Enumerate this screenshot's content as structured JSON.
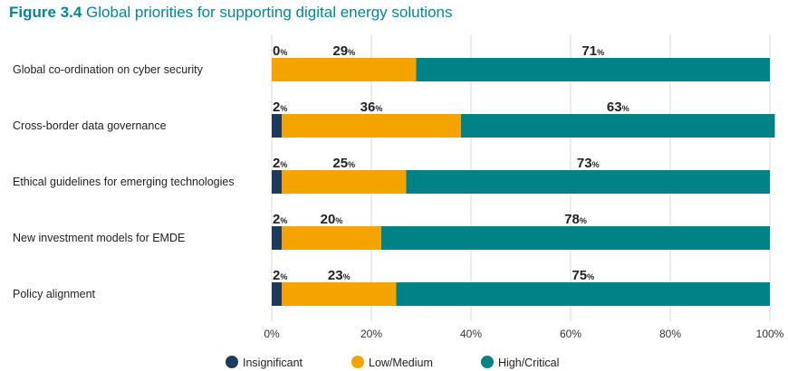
{
  "title_prefix": "Figure 3.4",
  "title_text": "Global priorities for supporting digital energy solutions",
  "colors": {
    "insignificant": "#1f3a5f",
    "low_medium": "#f4a300",
    "high_critical": "#008287",
    "title": "#00889a",
    "grid": "#d9d9d9"
  },
  "chart_data": {
    "type": "bar",
    "orientation": "horizontal",
    "stacked": true,
    "title": "Global priorities for supporting digital energy solutions",
    "categories": [
      "Global co-ordination on cyber security",
      "Cross-border data governance",
      "Ethical guidelines for emerging technologies",
      "New investment models for EMDE",
      "Policy alignment"
    ],
    "series": [
      {
        "name": "Insignificant",
        "color_key": "insignificant",
        "values": [
          0,
          2,
          2,
          2,
          2
        ]
      },
      {
        "name": "Low/Medium",
        "color_key": "low_medium",
        "values": [
          29,
          36,
          25,
          20,
          23
        ]
      },
      {
        "name": "High/Critical",
        "color_key": "high_critical",
        "values": [
          71,
          63,
          73,
          78,
          75
        ]
      }
    ],
    "value_suffix": "%",
    "xlim": [
      0,
      100
    ],
    "xticks": [
      0,
      20,
      40,
      60,
      80,
      100
    ],
    "xtick_labels": [
      "0%",
      "20%",
      "40%",
      "60%",
      "80%",
      "100%"
    ],
    "grid": true,
    "legend_position": "bottom-center"
  }
}
